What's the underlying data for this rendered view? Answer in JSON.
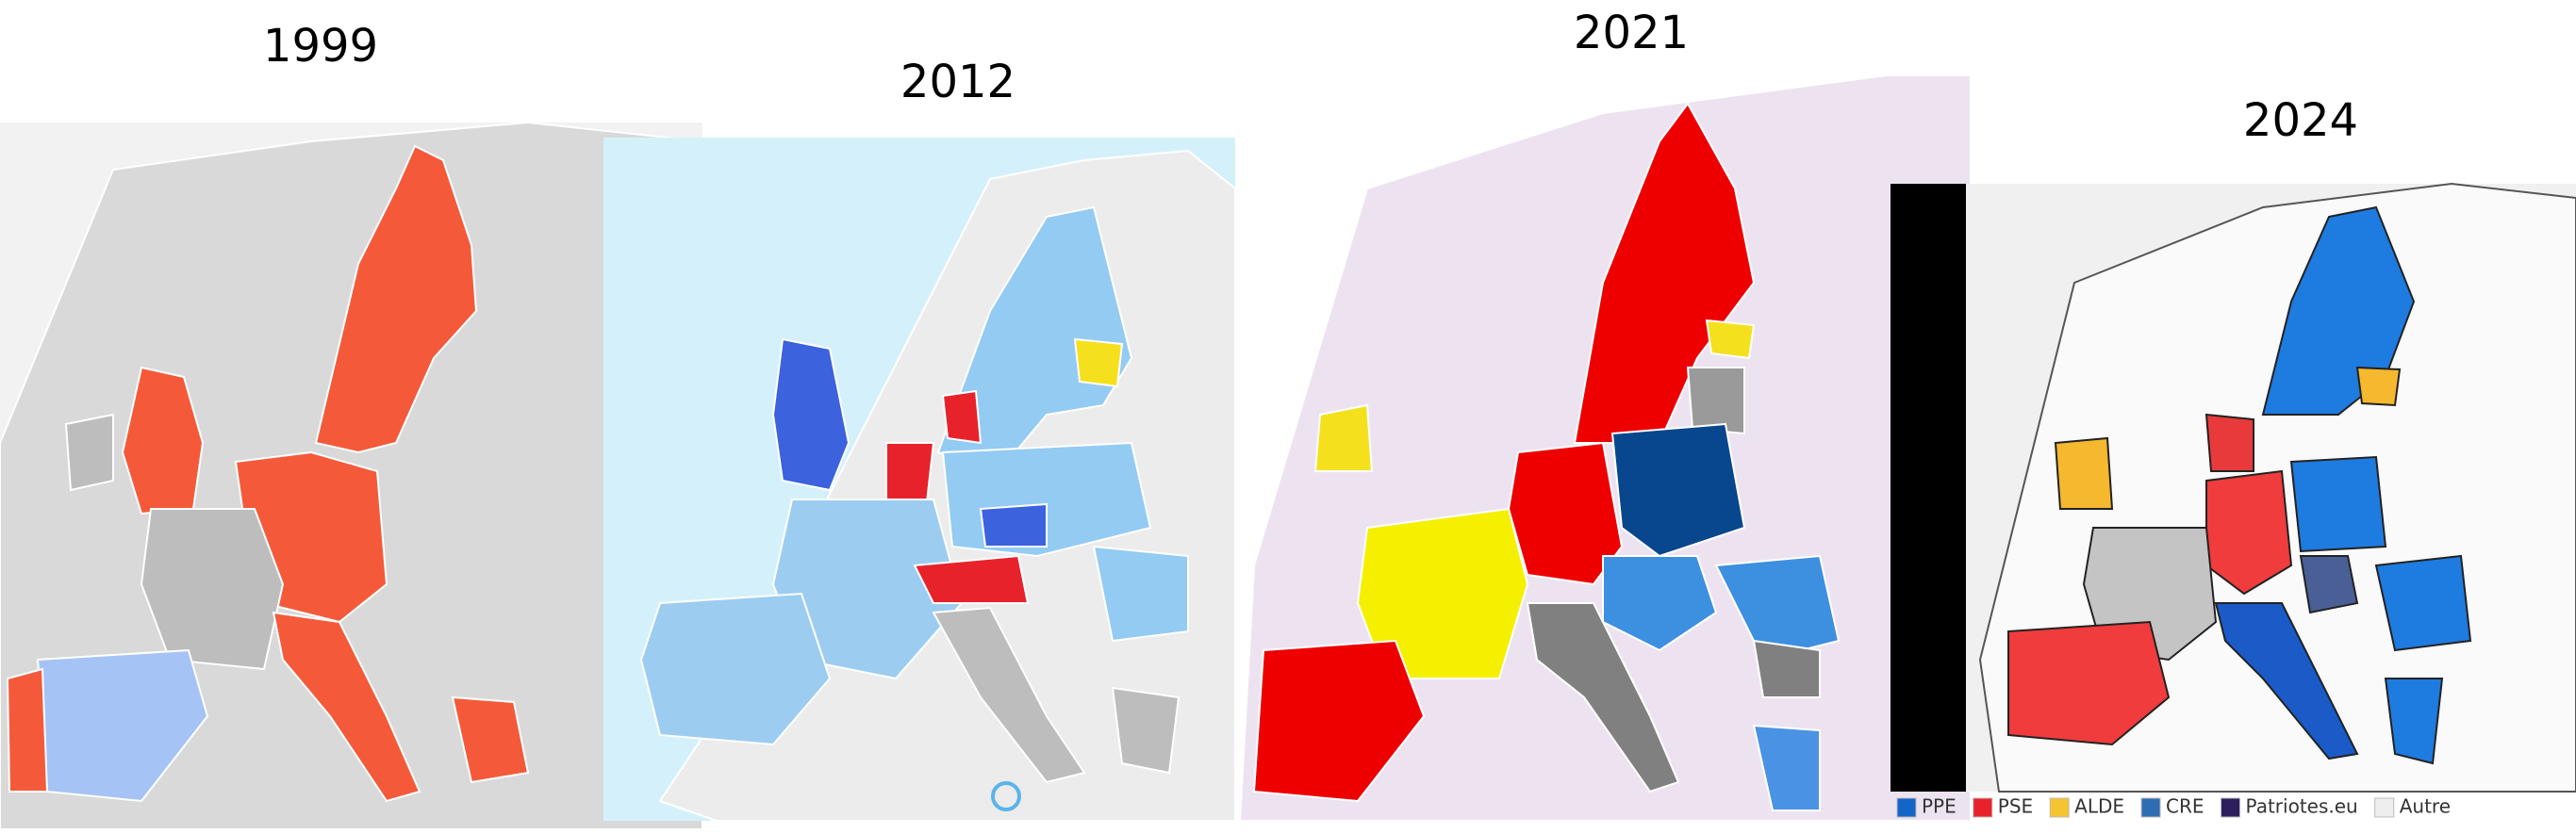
{
  "panels": [
    {
      "title": "1999"
    },
    {
      "title": "2012"
    },
    {
      "title": "2021"
    },
    {
      "title": "2024"
    }
  ],
  "legend": [
    {
      "name": "PPE",
      "color": "#1565c8"
    },
    {
      "name": "PSE",
      "color": "#e8222a"
    },
    {
      "name": "ALDE",
      "color": "#f5c431"
    },
    {
      "name": "CRE",
      "color": "#2f6db3"
    },
    {
      "name": "Patriotes.eu",
      "color": "#2d1f5e"
    },
    {
      "name": "Autre",
      "color": "#eeeeee"
    }
  ]
}
